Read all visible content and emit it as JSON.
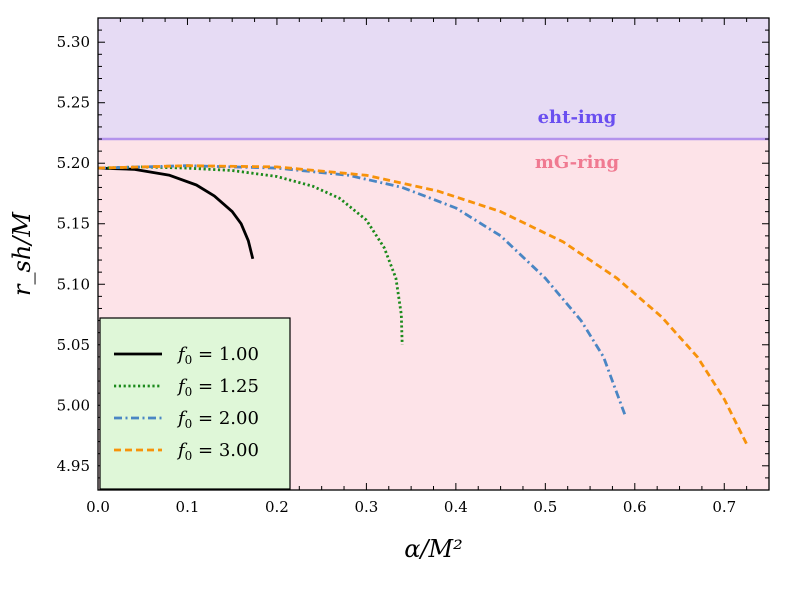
{
  "chart_data": {
    "type": "line",
    "xlabel": "α/M²",
    "ylabel": "r_sh/M",
    "xlim": [
      0.0,
      0.75
    ],
    "ylim": [
      4.93,
      5.32
    ],
    "x_ticks": [
      "0.0",
      "0.1",
      "0.2",
      "0.3",
      "0.4",
      "0.5",
      "0.6",
      "0.7"
    ],
    "y_ticks": [
      "4.95",
      "5.00",
      "5.05",
      "5.10",
      "5.15",
      "5.20",
      "5.25",
      "5.30"
    ],
    "grid": false,
    "legend_position": "bottom-left",
    "bands": [
      {
        "name": "eht-img",
        "ymin": 5.22,
        "ymax": 5.32,
        "fill": "#e6dbf4",
        "line_color": "#b393ec",
        "text_color": "#6a4ff0"
      },
      {
        "name": "mG-ring",
        "ymin": 4.93,
        "ymax": 5.22,
        "fill": "#fde3e8",
        "text_color": "#f07a91"
      }
    ],
    "series": [
      {
        "name": "f_0 = 1.00",
        "sub": "0",
        "value_text": " = 1.00",
        "color": "#000000",
        "dash": "solid",
        "x": [
          0.0,
          0.04,
          0.08,
          0.11,
          0.13,
          0.15,
          0.16,
          0.168,
          0.173
        ],
        "y": [
          5.196,
          5.195,
          5.19,
          5.182,
          5.173,
          5.16,
          5.15,
          5.136,
          5.121
        ]
      },
      {
        "name": "f_0 = 1.25",
        "sub": "0",
        "value_text": " = 1.25",
        "color": "#1b8a1b",
        "dash": "dotted",
        "x": [
          0.0,
          0.05,
          0.1,
          0.15,
          0.2,
          0.24,
          0.27,
          0.3,
          0.32,
          0.333,
          0.339,
          0.34
        ],
        "y": [
          5.196,
          5.197,
          5.196,
          5.194,
          5.189,
          5.181,
          5.171,
          5.153,
          5.13,
          5.105,
          5.075,
          5.05
        ]
      },
      {
        "name": "f_0 = 2.00",
        "sub": "0",
        "value_text": " = 2.00",
        "color": "#4a86c4",
        "dash": "dashdot",
        "x": [
          0.0,
          0.1,
          0.2,
          0.28,
          0.34,
          0.4,
          0.45,
          0.5,
          0.54,
          0.565,
          0.58,
          0.59
        ],
        "y": [
          5.196,
          5.198,
          5.196,
          5.19,
          5.18,
          5.163,
          5.14,
          5.105,
          5.07,
          5.04,
          5.01,
          4.99
        ]
      },
      {
        "name": "f_0 = 3.00",
        "sub": "0",
        "value_text": " = 3.00",
        "color": "#f7920a",
        "dash": "dashed",
        "x": [
          0.0,
          0.1,
          0.2,
          0.3,
          0.38,
          0.45,
          0.52,
          0.58,
          0.63,
          0.67,
          0.7,
          0.725
        ],
        "y": [
          5.196,
          5.198,
          5.197,
          5.19,
          5.177,
          5.16,
          5.135,
          5.105,
          5.073,
          5.04,
          5.005,
          4.968
        ]
      }
    ]
  }
}
